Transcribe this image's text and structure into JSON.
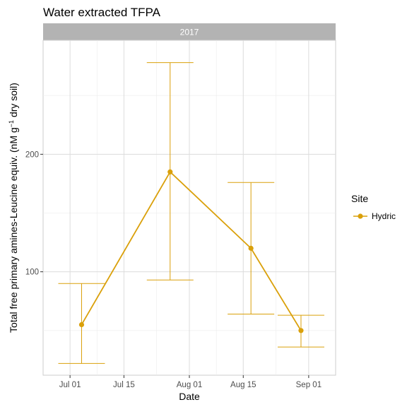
{
  "chart_data": {
    "type": "line",
    "title": "Water extracted TFPA",
    "facet": "2017",
    "xlabel": "Date",
    "ylabel_main": "Total free primary amines-Leucine equiv. (nM g",
    "ylabel_sup": "−1",
    "ylabel_tail": " dry soil)",
    "x_ticks": [
      "Jul 01",
      "Jul 15",
      "Aug 01",
      "Aug 15",
      "Sep 01"
    ],
    "y_ticks": [
      100,
      200
    ],
    "xlim": [
      "2017-06-24",
      "2017-09-08"
    ],
    "ylim": [
      12,
      297
    ],
    "grid": true,
    "legend_position": "right",
    "legend_title": "Site",
    "series": [
      {
        "name": "Hydric",
        "color": "#DAA00A",
        "points": [
          {
            "x": "2017-07-04",
            "y": 55,
            "ymin": 22,
            "ymax": 90
          },
          {
            "x": "2017-07-27",
            "y": 185,
            "ymin": 93,
            "ymax": 278
          },
          {
            "x": "2017-08-17",
            "y": 120,
            "ymin": 64,
            "ymax": 176
          },
          {
            "x": "2017-08-30",
            "y": 50,
            "ymin": 36,
            "ymax": 63
          }
        ]
      }
    ]
  }
}
